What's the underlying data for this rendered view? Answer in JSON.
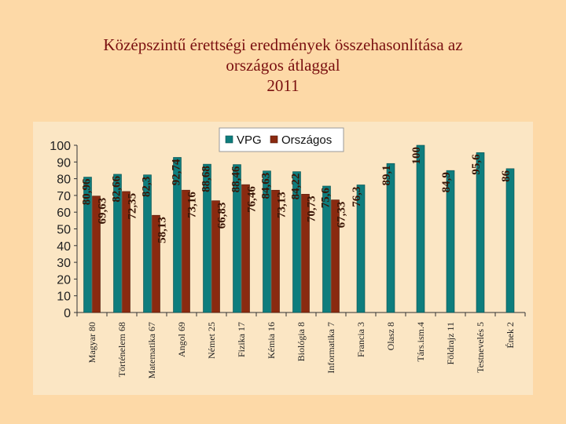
{
  "title_lines": [
    "Középszintű érettségi eredmények összehasonlítása az",
    "országos átlaggal",
    "2011"
  ],
  "colors": {
    "background": "#fdd9a7",
    "plot_background": "#fbe6c4",
    "title": "#7a1010",
    "vpg": "#0e7d7d",
    "orszagos": "#8a2a10"
  },
  "chart_data": {
    "type": "bar",
    "title": "Középszintű érettségi eredmények összehasonlítása az országos átlaggal 2011",
    "categories": [
      "Magyar 80",
      "Történelem 68",
      "Matematika 67",
      "Angol 69",
      "Német 25",
      "Fizika 17",
      "Kémia 16",
      "Biológia 8",
      "Informatika 7",
      "Francia 3",
      "Olasz 8",
      "Társ.ism.4",
      "Földrajz 11",
      "Testnevelés 5",
      "Ének 2"
    ],
    "series": [
      {
        "name": "VPG",
        "values": [
          80.96,
          82.66,
          82.3,
          92.74,
          88.68,
          88.46,
          84.63,
          84.22,
          75.6,
          76.3,
          89.1,
          100,
          84.9,
          95.6,
          86
        ],
        "labels": [
          "80,96",
          "82,66",
          "82,3",
          "92,74",
          "88,68",
          "88,46",
          "84,63",
          "84,22",
          "75,6",
          "76,3",
          "89,1",
          "100",
          "84,9",
          "95,6",
          "86"
        ]
      },
      {
        "name": "Országos",
        "values": [
          69.63,
          72.35,
          58.13,
          73.16,
          66.83,
          76.46,
          73.13,
          70.73,
          67.33,
          null,
          null,
          null,
          null,
          null,
          null
        ],
        "labels": [
          "69,63",
          "72,35",
          "58,13",
          "73,16",
          "66,83",
          "76,46",
          "73,13",
          "70,73",
          "67,33",
          null,
          null,
          null,
          null,
          null,
          null
        ]
      }
    ],
    "ylim": [
      0,
      100
    ],
    "yticks": [
      0,
      10,
      20,
      30,
      40,
      50,
      60,
      70,
      80,
      90,
      100
    ],
    "legend": "top-center",
    "grid": false
  }
}
